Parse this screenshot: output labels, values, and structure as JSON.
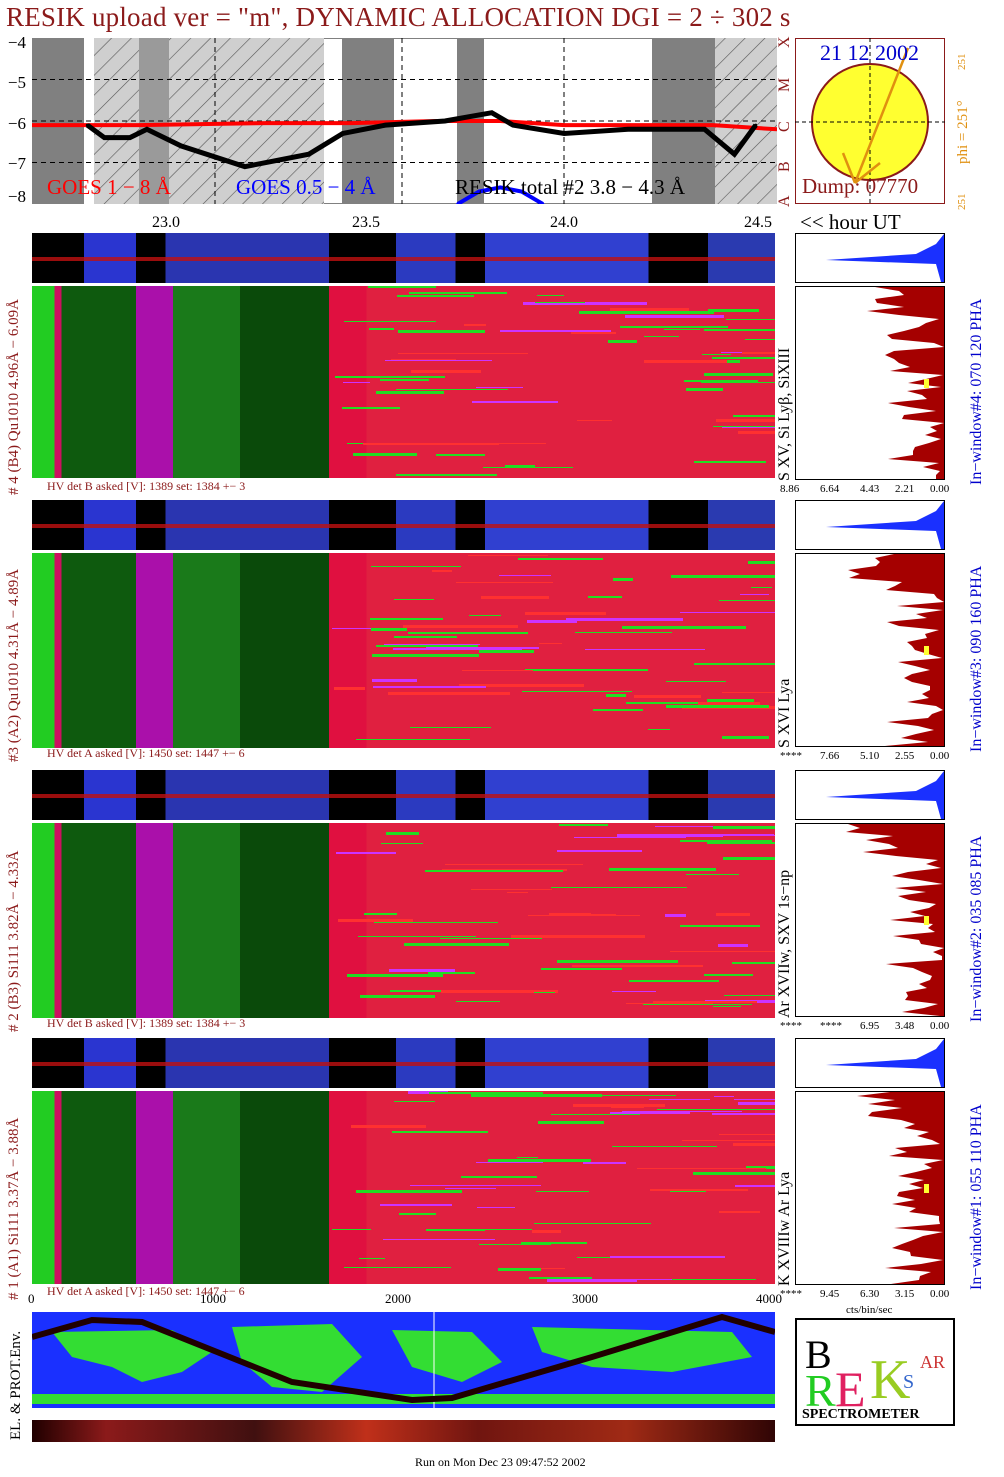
{
  "header": {
    "title": "RESIK upload ver = \"m\", DYNAMIC ALLOCATION  DGI =   2 ÷ 302 s",
    "date": "21 12 2002",
    "dump": "Dump: 07770",
    "phi_label": "phi = 251°",
    "phi_val_top": "251",
    "phi_val_bottom": "251",
    "hour_ut": "<< hour UT"
  },
  "goes": {
    "y_ticks": [
      "−4",
      "−5",
      "−6",
      "−7",
      "−8"
    ],
    "class_letters": [
      "X",
      "M",
      "C",
      "B",
      "A"
    ],
    "legend_goes1": "GOES 1 − 8 Å",
    "legend_goes2": "GOES 0.5 − 4 Å",
    "legend_resik": "RESIK total #2  3.8 − 4.3 Å",
    "x_ticks": [
      "23.0",
      "23.5",
      "24.0",
      "24.5"
    ]
  },
  "channels": [
    {
      "left_label": "# 4 (B4) Qu1010 4.96Å − 6.09Å",
      "right_label": "S XV, Si Lyβ, SiXIII",
      "window": "In−window#4:  070 120 PHA",
      "hv": "HV det B asked [V]:  1389 set:  1384  +−    3",
      "pha_ticks": [
        "8.86",
        "6.64",
        "4.43",
        "2.21",
        "0.00"
      ]
    },
    {
      "left_label": "#3 (A2) Qu1010  4.31Å − 4.89Å",
      "right_label": "S XVI Lya",
      "window": "In−window#3:  090 160 PHA",
      "hv": "HV det A asked [V]:  1450 set:  1447  +−    6",
      "pha_ticks": [
        "****",
        "7.66",
        "5.10",
        "2.55",
        "0.00"
      ]
    },
    {
      "left_label": "# 2 (B3) Si111  3.82Å − 4.33Å",
      "right_label": "Ar XVIIw,  SXV 1s−np",
      "window": "In−window#2:  035 085 PHA",
      "hv": "HV det B asked [V]:  1389 set:  1384  +−    3",
      "pha_ticks": [
        "****",
        "****",
        "6.95",
        "3.48",
        "0.00"
      ]
    },
    {
      "left_label": "# 1 (A1) Si111  3.37Å − 3.88Å",
      "right_label": "K XVIIIw  Ar Lya",
      "window": "In−window#1:  055 110 PHA",
      "hv": "HV det A asked [V]:  1450 set:  1447  +−    6",
      "pha_ticks": [
        "****",
        "9.45",
        "6.30",
        "3.15",
        "0.00"
      ]
    }
  ],
  "bottom": {
    "x_ticks": [
      "0",
      "1000",
      "2000",
      "3000",
      "4000"
    ],
    "pha_unit": "cts/bin/sec",
    "env_label": "EL. & PROT.Env.",
    "footer": "Run on Mon Dec 23 09:47:52 2002",
    "logo_text": "SPECTROMETER"
  },
  "chart_data": {
    "type": "line",
    "title": "RESIK upload ver = \"m\", DYNAMIC ALLOCATION  DGI =   2 ÷ 302 s",
    "xlabel": "<< hour UT",
    "ylabel": "",
    "xlim": [
      22.75,
      24.5
    ],
    "ylim": [
      -8,
      -4
    ],
    "x_ticks": [
      23.0,
      23.5,
      24.0,
      24.5
    ],
    "y_ticks": [
      -4,
      -5,
      -6,
      -7,
      -8
    ],
    "series": [
      {
        "name": "GOES 1 − 8 Å",
        "color": "#ff0000",
        "x": [
          22.75,
          23.0,
          23.3,
          23.5,
          23.7,
          23.85,
          24.0,
          24.2,
          24.35,
          24.5
        ],
        "y": [
          -6.1,
          -6.1,
          -6.05,
          -6.05,
          -6.0,
          -6.0,
          -6.1,
          -6.1,
          -6.1,
          -6.2
        ]
      },
      {
        "name": "RESIK total #2  3.8 − 4.3 Å",
        "color": "#000000",
        "x": [
          22.88,
          22.92,
          22.98,
          23.02,
          23.1,
          23.25,
          23.4,
          23.48,
          23.58,
          23.72,
          23.83,
          23.88,
          24.0,
          24.15,
          24.33,
          24.4,
          24.45
        ],
        "y": [
          -6.1,
          -6.4,
          -6.4,
          -6.2,
          -6.6,
          -7.1,
          -6.8,
          -6.3,
          -6.1,
          -6.0,
          -5.8,
          -6.1,
          -6.3,
          -6.2,
          -6.2,
          -6.8,
          -6.1
        ]
      },
      {
        "name": "GOES 0.5 − 4 Å",
        "color": "#0000ff",
        "x": [
          23.75,
          23.8,
          23.85,
          23.9,
          23.95
        ],
        "y": [
          -8.0,
          -7.7,
          -7.6,
          -7.7,
          -8.0
        ]
      }
    ],
    "legend": "bottom",
    "grid": true
  },
  "colors": {
    "title": "#8b1a1a",
    "goes1": "#ff0000",
    "goes2": "#0000ff",
    "pha": "#a50000",
    "pha_bg": "#2040ff"
  }
}
